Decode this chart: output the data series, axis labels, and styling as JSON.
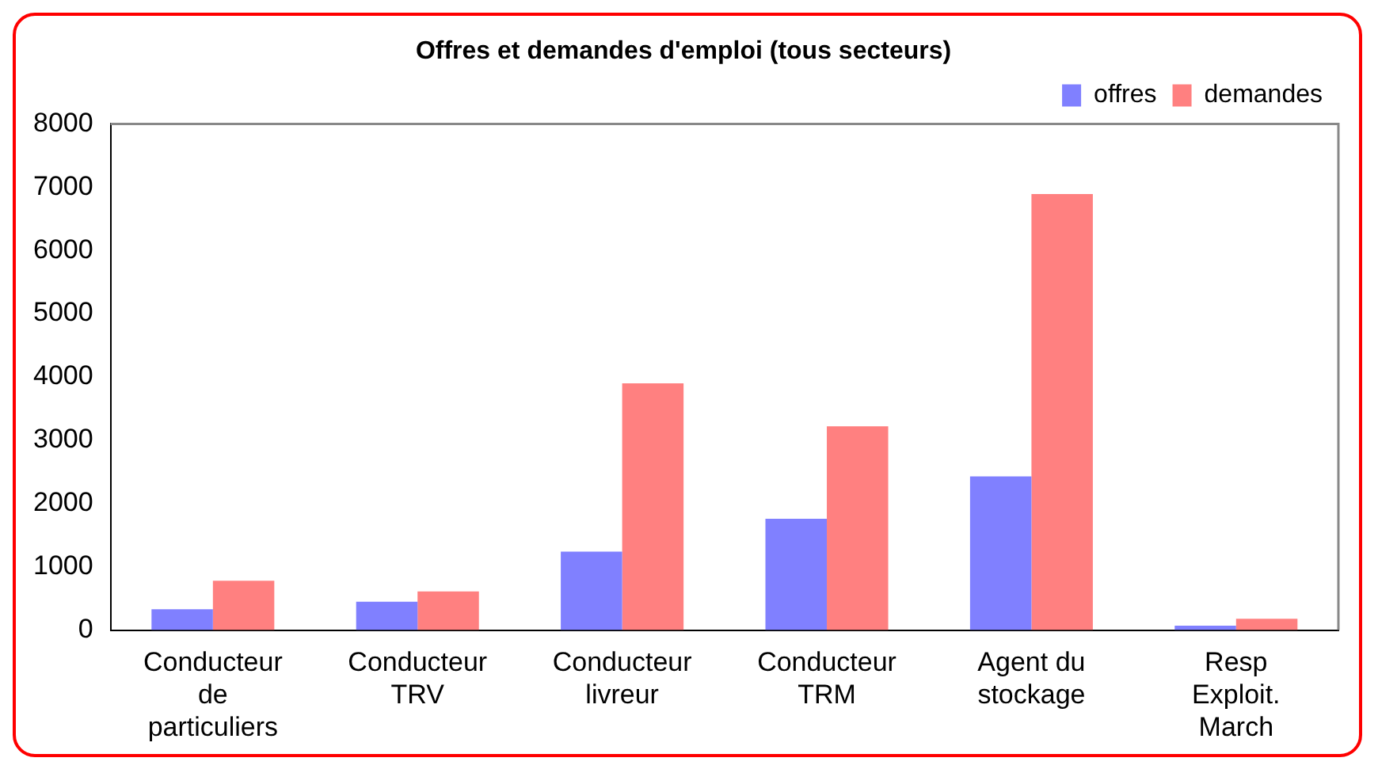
{
  "chart_data": {
    "type": "bar",
    "title": "Offres et demandes d'emploi (tous secteurs)",
    "categories": [
      "Conducteur de particuliers",
      "Conducteur TRV",
      "Conducteur livreur",
      "Conducteur TRM",
      "Agent du stockage",
      "Resp Exploit. March"
    ],
    "series": [
      {
        "name": "offres",
        "color": "#8080ff",
        "values": [
          330,
          450,
          1240,
          1760,
          2430,
          70
        ]
      },
      {
        "name": "demandes",
        "color": "#ff8080",
        "values": [
          780,
          610,
          3900,
          3220,
          6890,
          180
        ]
      }
    ],
    "ylim": [
      0,
      8000
    ],
    "yticks": [
      0,
      1000,
      2000,
      3000,
      4000,
      5000,
      6000,
      7000,
      8000
    ],
    "grid": false,
    "legend": "top right"
  }
}
